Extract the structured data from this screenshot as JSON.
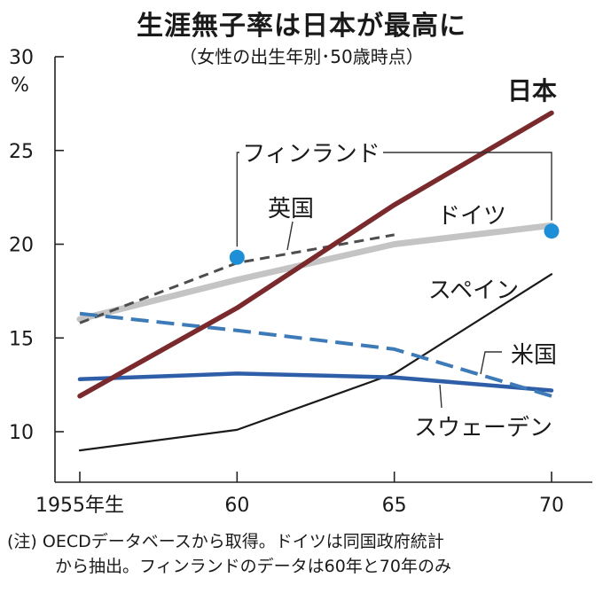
{
  "header": {
    "title": "生涯無子率は日本が最高に",
    "subtitle": "（女性の出生年別･50歳時点）"
  },
  "notes": [
    "(注) OECDデータベースから取得。ドイツは同国政府統計",
    "から抽出。フィンランドのデータは60年と70年のみ"
  ],
  "chart_data": {
    "type": "line",
    "title": "生涯無子率は日本が最高に",
    "subtitle": "（女性の出生年別･50歳時点）",
    "xlabel": "",
    "ylabel": "%",
    "y_unit": "%",
    "x": [
      1955,
      1960,
      1965,
      1970
    ],
    "x_tick_labels": [
      "1955年生",
      "60",
      "65",
      "70"
    ],
    "ylim": [
      7,
      30
    ],
    "y_ticks": [
      10,
      15,
      20,
      25,
      30
    ],
    "y_tick_labels": [
      "10",
      "15",
      "20",
      "25",
      "30"
    ],
    "series": [
      {
        "key": "japan",
        "name": "日本",
        "color": "#7a2a2c",
        "style": "solid",
        "x": [
          1955,
          1960,
          1965,
          1970
        ],
        "values": [
          11.9,
          16.6,
          22.1,
          27.0
        ]
      },
      {
        "key": "germany",
        "name": "ドイツ",
        "color": "#c4c4c4",
        "style": "solid",
        "x": [
          1955,
          1960,
          1965,
          1970
        ],
        "values": [
          16.0,
          18.1,
          20.0,
          21.0
        ]
      },
      {
        "key": "uk",
        "name": "英国",
        "color": "#4d4d4d",
        "style": "dashed",
        "x": [
          1955,
          1960,
          1965
        ],
        "values": [
          15.8,
          19.0,
          20.5
        ]
      },
      {
        "key": "spain",
        "name": "スペイン",
        "color": "#1a1a1a",
        "style": "solid",
        "x": [
          1955,
          1960,
          1965,
          1970
        ],
        "values": [
          9.0,
          10.1,
          13.1,
          18.4
        ]
      },
      {
        "key": "us",
        "name": "米国",
        "color": "#3d7ab8",
        "style": "dashed",
        "x": [
          1955,
          1960,
          1965,
          1970
        ],
        "values": [
          16.3,
          15.4,
          14.4,
          11.9
        ]
      },
      {
        "key": "sweden",
        "name": "スウェーデン",
        "color": "#2e5ea8",
        "style": "solid",
        "x": [
          1955,
          1960,
          1965,
          1970
        ],
        "values": [
          12.8,
          13.1,
          12.9,
          12.2
        ]
      },
      {
        "key": "finland",
        "name": "フィンランド",
        "color": "#1e8fd6",
        "style": "points",
        "x": [
          1960,
          1970
        ],
        "values": [
          19.3,
          20.7
        ]
      }
    ]
  }
}
